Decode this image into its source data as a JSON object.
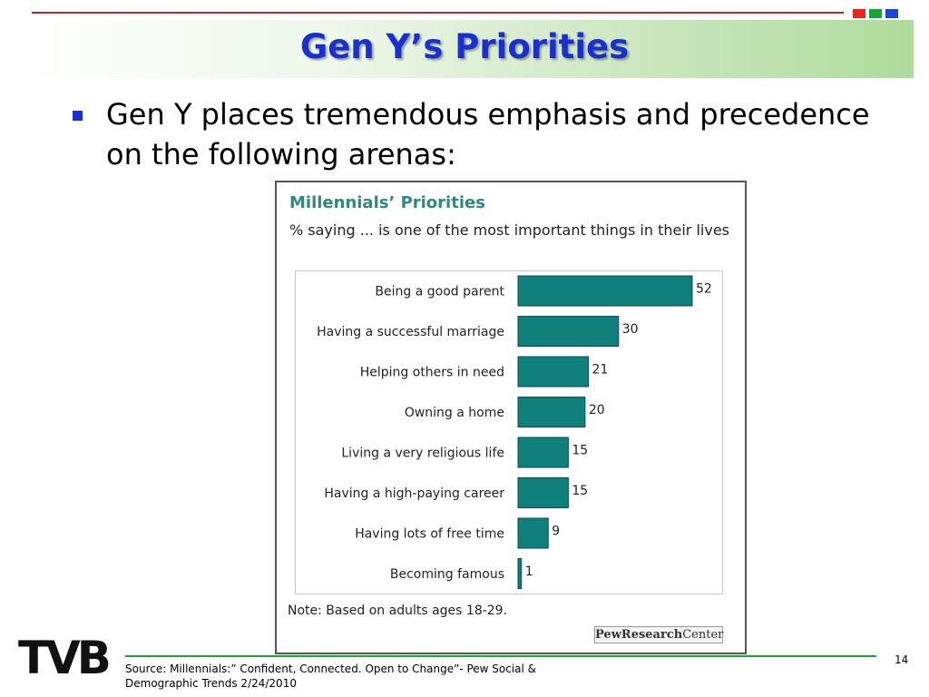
{
  "slide": {
    "title": "Gen Y’s Priorities",
    "bullet": "Gen Y places tremendous emphasis and precedence on the following arenas:",
    "source": "Source: Millennials:” Confident, Connected. Open to Change”- Pew Social & Demographic Trends 2/24/2010",
    "page_number": "14",
    "logo_text": "TVB"
  },
  "colors": {
    "title": "#1a2fd0",
    "bar": "#0f7f7c",
    "chart_title": "#2e8a7e"
  },
  "chart_data": {
    "type": "bar",
    "orientation": "horizontal",
    "title": "Millennials’ Priorities",
    "subtitle": "% saying ... is one of the most important things in their lives",
    "categories": [
      "Being a good parent",
      "Having a successful marriage",
      "Helping others in need",
      "Owning a home",
      "Living a very religious life",
      "Having a high-paying career",
      "Having lots of free time",
      "Becoming famous"
    ],
    "values": [
      52,
      30,
      21,
      20,
      15,
      15,
      9,
      1
    ],
    "xlim": [
      0,
      60
    ],
    "note": "Note: Based on adults ages 18-29.",
    "source_logo": {
      "part1": "PewResearch",
      "part2": "Center"
    },
    "grid": false,
    "legend": "none"
  }
}
